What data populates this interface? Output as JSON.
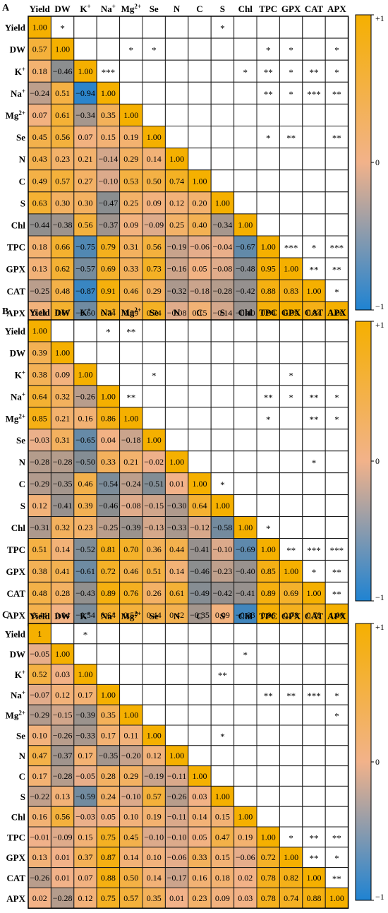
{
  "variables": [
    "Yield",
    "DW",
    "K+",
    "Na+",
    "Mg2+",
    "Se",
    "N",
    "C",
    "S",
    "Chl",
    "TPC",
    "GPX",
    "CAT",
    "APX"
  ],
  "scale": {
    "colors": {
      "pos": "#F5B000",
      "mid": "#F2B28A",
      "neg": "#1F83D2"
    },
    "labels": [
      "+1",
      "0",
      "−1"
    ]
  },
  "chart_data": [
    {
      "type": "heatmap",
      "title": "A",
      "categories": [
        "Yield",
        "DW",
        "K+",
        "Na+",
        "Mg2+",
        "Se",
        "N",
        "C",
        "S",
        "Chl",
        "TPC",
        "GPX",
        "CAT",
        "APX"
      ],
      "clim": [
        -1,
        1
      ],
      "lower": [
        [
          "1.00"
        ],
        [
          "0.57",
          "1.00"
        ],
        [
          "0.18",
          "−0.46",
          "1.00"
        ],
        [
          "−0.24",
          "0.51",
          "−0.94",
          "1.00"
        ],
        [
          "0.07",
          "0.61",
          "−0.34",
          "0.35",
          "1.00"
        ],
        [
          "0.45",
          "0.56",
          "0.07",
          "0.15",
          "0.19",
          "1.00"
        ],
        [
          "0.43",
          "0.23",
          "0.21",
          "−0.14",
          "0.29",
          "0.14",
          "1.00"
        ],
        [
          "0.49",
          "0.57",
          "0.27",
          "−0.10",
          "0.53",
          "0.50",
          "0.74",
          "1.00"
        ],
        [
          "0.63",
          "0.30",
          "0.30",
          "−0.47",
          "0.25",
          "0.09",
          "0.12",
          "0.20",
          "1.00"
        ],
        [
          "−0.44",
          "−0.38",
          "0.56",
          "−0.37",
          "0.09",
          "−0.09",
          "0.25",
          "0.40",
          "−0.34",
          "1.00"
        ],
        [
          "0.18",
          "0.66",
          "−0.75",
          "0.79",
          "0.31",
          "0.56",
          "−0.19",
          "−0.06",
          "−0.04",
          "−0.67",
          "1.00"
        ],
        [
          "0.13",
          "0.62",
          "−0.57",
          "0.69",
          "0.33",
          "0.73",
          "−0.16",
          "0.05",
          "−0.08",
          "−0.48",
          "0.95",
          "1.00"
        ],
        [
          "−0.25",
          "0.48",
          "−0.87",
          "0.91",
          "0.46",
          "0.29",
          "−0.32",
          "−0.18",
          "−0.28",
          "−0.42",
          "0.88",
          "0.83",
          "1.00"
        ],
        [
          "0.11",
          "0.67",
          "−0.60",
          "0.74",
          "0.39",
          "0.74",
          "−0.08",
          "0.15",
          "−0.14",
          "−0.40",
          "0.94",
          "0.99",
          "0.84",
          "1.00"
        ]
      ],
      "significance": [
        {
          "row": 0,
          "col": 1,
          "mark": "*"
        },
        {
          "row": 0,
          "col": 8,
          "mark": "*"
        },
        {
          "row": 1,
          "col": 4,
          "mark": "*"
        },
        {
          "row": 1,
          "col": 5,
          "mark": "*"
        },
        {
          "row": 1,
          "col": 10,
          "mark": "*"
        },
        {
          "row": 1,
          "col": 11,
          "mark": "*"
        },
        {
          "row": 1,
          "col": 13,
          "mark": "*"
        },
        {
          "row": 2,
          "col": 3,
          "mark": "***"
        },
        {
          "row": 2,
          "col": 9,
          "mark": "*"
        },
        {
          "row": 2,
          "col": 10,
          "mark": "**"
        },
        {
          "row": 2,
          "col": 11,
          "mark": "*"
        },
        {
          "row": 2,
          "col": 12,
          "mark": "**"
        },
        {
          "row": 2,
          "col": 13,
          "mark": "*"
        },
        {
          "row": 3,
          "col": 10,
          "mark": "**"
        },
        {
          "row": 3,
          "col": 11,
          "mark": "*"
        },
        {
          "row": 3,
          "col": 12,
          "mark": "***"
        },
        {
          "row": 3,
          "col": 13,
          "mark": "**"
        },
        {
          "row": 5,
          "col": 10,
          "mark": "*"
        },
        {
          "row": 5,
          "col": 11,
          "mark": "**"
        },
        {
          "row": 5,
          "col": 13,
          "mark": "**"
        },
        {
          "row": 10,
          "col": 11,
          "mark": "***"
        },
        {
          "row": 10,
          "col": 12,
          "mark": "*"
        },
        {
          "row": 10,
          "col": 13,
          "mark": "***"
        },
        {
          "row": 11,
          "col": 12,
          "mark": "**"
        },
        {
          "row": 11,
          "col": 13,
          "mark": "**"
        },
        {
          "row": 12,
          "col": 13,
          "mark": "*"
        }
      ]
    },
    {
      "type": "heatmap",
      "title": "B",
      "categories": [
        "Yield",
        "DW",
        "K+",
        "Na+",
        "Mg2+",
        "Se",
        "N",
        "C",
        "S",
        "Chl",
        "TPC",
        "GPX",
        "CAT",
        "APX"
      ],
      "clim": [
        -1,
        1
      ],
      "lower": [
        [
          "1.00"
        ],
        [
          "0.39",
          "1.00"
        ],
        [
          "0.38",
          "0.09",
          "1.00"
        ],
        [
          "0.64",
          "0.32",
          "−0.26",
          "1.00"
        ],
        [
          "0.85",
          "0.21",
          "0.16",
          "0.86",
          "1.00"
        ],
        [
          "−0.03",
          "0.31",
          "−0.65",
          "0.04",
          "−0.18",
          "1.00"
        ],
        [
          "−0.28",
          "−0.28",
          "−0.50",
          "0.33",
          "0.21",
          "−0.02",
          "1.00"
        ],
        [
          "−0.29",
          "−0.35",
          "0.46",
          "−0.54",
          "−0.24",
          "−0.51",
          "0.01",
          "1.00"
        ],
        [
          "0.12",
          "−0.41",
          "0.39",
          "−0.46",
          "−0.08",
          "−0.15",
          "−0.30",
          "0.64",
          "1.00"
        ],
        [
          "−0.31",
          "0.32",
          "0.23",
          "−0.25",
          "−0.39",
          "−0.13",
          "−0.33",
          "−0.12",
          "−0.58",
          "1.00"
        ],
        [
          "0.51",
          "0.14",
          "−0.52",
          "0.81",
          "0.70",
          "0.36",
          "0.44",
          "−0.41",
          "−0.10",
          "−0.69",
          "1.00"
        ],
        [
          "0.38",
          "0.41",
          "−0.61",
          "0.72",
          "0.46",
          "0.51",
          "0.14",
          "−0.46",
          "−0.23",
          "−0.40",
          "0.85",
          "1.00"
        ],
        [
          "0.48",
          "0.28",
          "−0.43",
          "0.89",
          "0.76",
          "0.26",
          "0.61",
          "−0.49",
          "−0.42",
          "−0.41",
          "0.89",
          "0.69",
          "1.00"
        ],
        [
          "0.44",
          "0.04",
          "−0.54",
          "0.64",
          "0.57",
          "0.44",
          "0.42",
          "−0.35",
          "0.09",
          "−0.83",
          "0.96",
          "0.78",
          "0.78",
          "1.00"
        ]
      ],
      "significance": [
        {
          "row": 0,
          "col": 3,
          "mark": "*"
        },
        {
          "row": 0,
          "col": 4,
          "mark": "**"
        },
        {
          "row": 2,
          "col": 5,
          "mark": "*"
        },
        {
          "row": 2,
          "col": 11,
          "mark": "*"
        },
        {
          "row": 3,
          "col": 4,
          "mark": "**"
        },
        {
          "row": 3,
          "col": 10,
          "mark": "**"
        },
        {
          "row": 3,
          "col": 11,
          "mark": "*"
        },
        {
          "row": 3,
          "col": 12,
          "mark": "**"
        },
        {
          "row": 3,
          "col": 13,
          "mark": "*"
        },
        {
          "row": 4,
          "col": 10,
          "mark": "*"
        },
        {
          "row": 4,
          "col": 12,
          "mark": "**"
        },
        {
          "row": 4,
          "col": 13,
          "mark": "*"
        },
        {
          "row": 6,
          "col": 12,
          "mark": "*"
        },
        {
          "row": 7,
          "col": 8,
          "mark": "*"
        },
        {
          "row": 9,
          "col": 10,
          "mark": "*"
        },
        {
          "row": 10,
          "col": 11,
          "mark": "**"
        },
        {
          "row": 10,
          "col": 12,
          "mark": "***"
        },
        {
          "row": 10,
          "col": 13,
          "mark": "***"
        },
        {
          "row": 11,
          "col": 12,
          "mark": "*"
        },
        {
          "row": 11,
          "col": 13,
          "mark": "**"
        },
        {
          "row": 12,
          "col": 13,
          "mark": "**"
        }
      ]
    },
    {
      "type": "heatmap",
      "title": "C",
      "categories": [
        "Yield",
        "DW",
        "K+",
        "Na+",
        "Mg2+",
        "Se",
        "N",
        "C",
        "S",
        "Chl",
        "TPC",
        "GPX",
        "CAT",
        "APX"
      ],
      "clim": [
        -1,
        1
      ],
      "lower": [
        [
          "1"
        ],
        [
          "−0.05",
          "1.00"
        ],
        [
          "0.52",
          "0.03",
          "1.00"
        ],
        [
          "−0.07",
          "0.12",
          "0.17",
          "1.00"
        ],
        [
          "−0.29",
          "−0.15",
          "−0.39",
          "0.35",
          "1.00"
        ],
        [
          "0.10",
          "−0.26",
          "−0.33",
          "0.17",
          "0.11",
          "1.00"
        ],
        [
          "0.47",
          "−0.37",
          "0.17",
          "−0.35",
          "−0.20",
          "0.12",
          "1.00"
        ],
        [
          "0.17",
          "−0.28",
          "−0.05",
          "0.28",
          "0.29",
          "−0.19",
          "−0.11",
          "1.00"
        ],
        [
          "−0.22",
          "0.13",
          "−0.59",
          "0.24",
          "−0.10",
          "0.57",
          "−0.26",
          "0.03",
          "1.00"
        ],
        [
          "0.16",
          "0.56",
          "−0.03",
          "0.05",
          "0.10",
          "0.19",
          "−0.11",
          "0.14",
          "0.15",
          "1.00"
        ],
        [
          "−0.01",
          "−0.09",
          "0.15",
          "0.75",
          "0.45",
          "−0.10",
          "−0.10",
          "0.05",
          "0.47",
          "0.19",
          "1.00"
        ],
        [
          "0.13",
          "0.01",
          "0.37",
          "0.87",
          "0.14",
          "0.10",
          "−0.06",
          "0.33",
          "0.15",
          "−0.06",
          "0.72",
          "1.00"
        ],
        [
          "−0.26",
          "0.01",
          "0.07",
          "0.88",
          "0.50",
          "0.14",
          "−0.17",
          "0.16",
          "0.18",
          "0.02",
          "0.78",
          "0.82",
          "1.00"
        ],
        [
          "0.02",
          "−0.28",
          "0.12",
          "0.75",
          "0.57",
          "0.35",
          "0.01",
          "0.23",
          "0.09",
          "0.03",
          "0.78",
          "0.74",
          "0.88",
          "1.00"
        ]
      ],
      "significance": [
        {
          "row": 0,
          "col": 2,
          "mark": "*"
        },
        {
          "row": 1,
          "col": 9,
          "mark": "*"
        },
        {
          "row": 2,
          "col": 8,
          "mark": "**"
        },
        {
          "row": 3,
          "col": 10,
          "mark": "**"
        },
        {
          "row": 3,
          "col": 11,
          "mark": "**"
        },
        {
          "row": 3,
          "col": 12,
          "mark": "***"
        },
        {
          "row": 3,
          "col": 13,
          "mark": "*"
        },
        {
          "row": 4,
          "col": 13,
          "mark": "*"
        },
        {
          "row": 5,
          "col": 8,
          "mark": "*"
        },
        {
          "row": 10,
          "col": 11,
          "mark": "*"
        },
        {
          "row": 10,
          "col": 12,
          "mark": "**"
        },
        {
          "row": 10,
          "col": 13,
          "mark": "**"
        },
        {
          "row": 11,
          "col": 12,
          "mark": "**"
        },
        {
          "row": 11,
          "col": 13,
          "mark": "*"
        },
        {
          "row": 12,
          "col": 13,
          "mark": "**"
        }
      ]
    }
  ]
}
